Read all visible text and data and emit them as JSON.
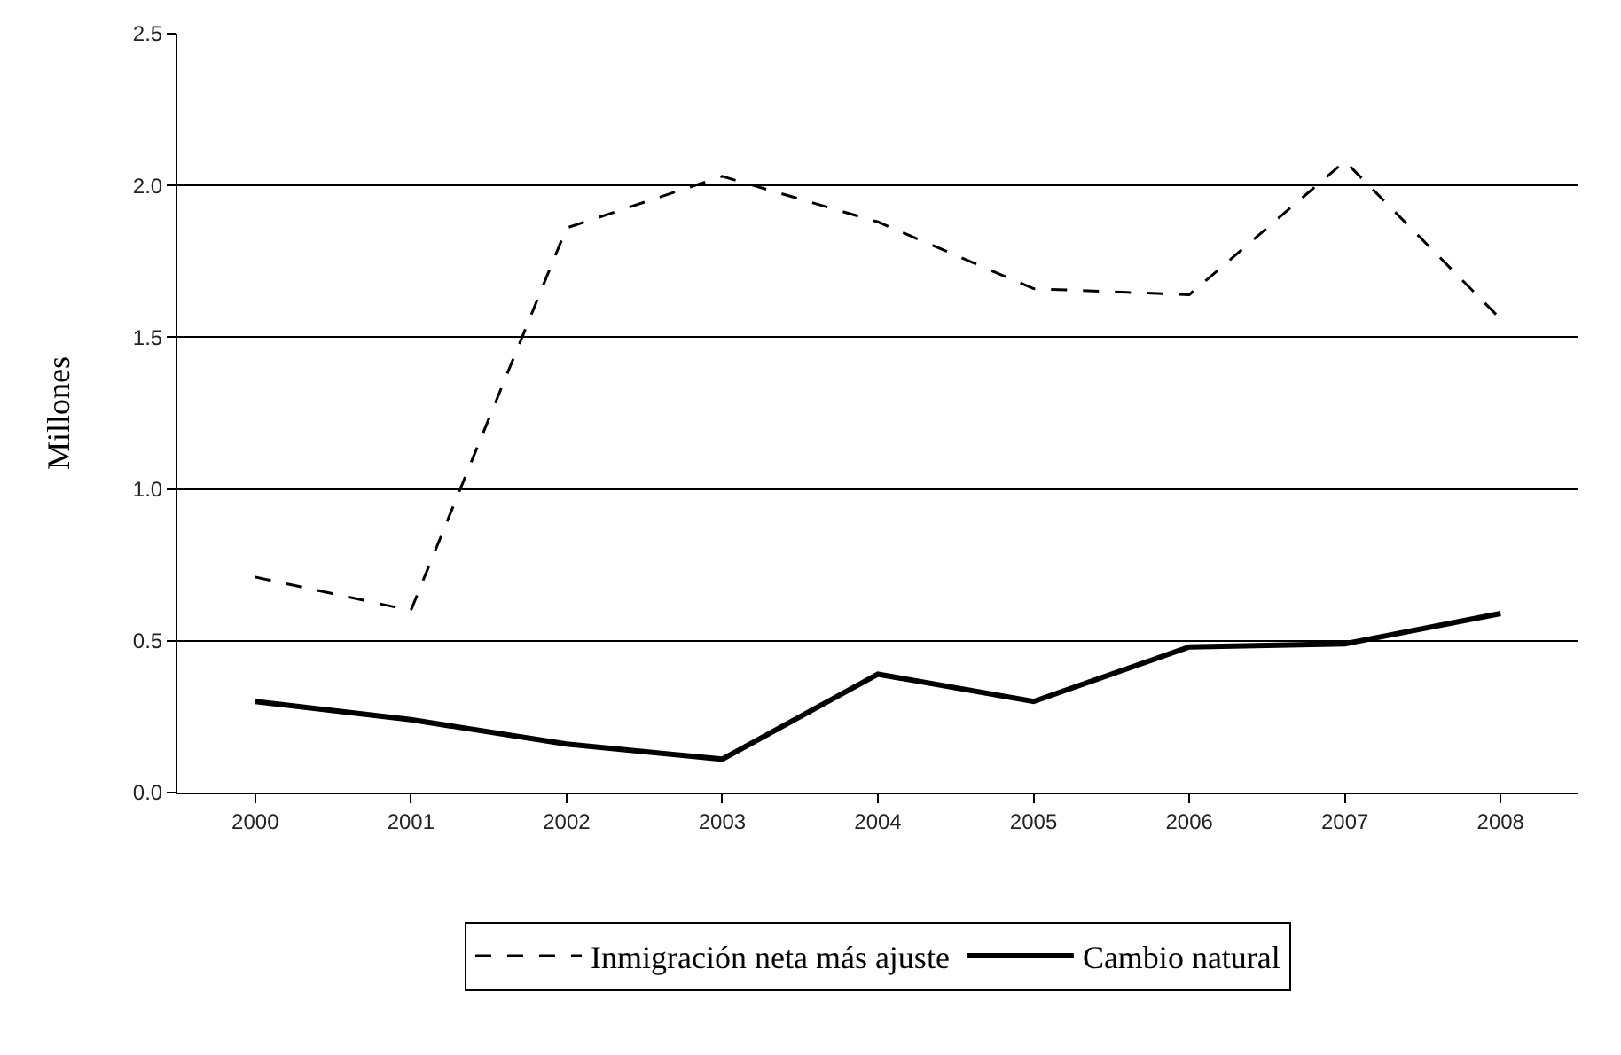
{
  "chart_data": {
    "type": "line",
    "ylabel": "Millones",
    "categories": [
      "2000",
      "2001",
      "2002",
      "2003",
      "2004",
      "2005",
      "2006",
      "2007",
      "2008"
    ],
    "series": [
      {
        "name": "Inmigración neta más ajuste",
        "color": "#000000",
        "line_style": "dashed",
        "values": [
          0.71,
          0.6,
          1.86,
          2.03,
          1.88,
          1.66,
          1.64,
          2.08,
          1.56
        ]
      },
      {
        "name": "Cambio natural",
        "color": "#000000",
        "line_style": "solid",
        "values": [
          0.3,
          0.24,
          0.16,
          0.11,
          0.39,
          0.3,
          0.48,
          0.49,
          0.59
        ]
      }
    ],
    "ylim": [
      0,
      2.5
    ],
    "yticks": [
      {
        "value": 0,
        "label": "0.0"
      },
      {
        "value": 0.5,
        "label": "0.5"
      },
      {
        "value": 1,
        "label": "1.0"
      },
      {
        "value": 1.5,
        "label": "1.5"
      },
      {
        "value": 2,
        "label": "2.0"
      },
      {
        "value": 2.5,
        "label": "2.5"
      }
    ],
    "grid": "y",
    "legend": "bottom",
    "marker": "none"
  }
}
